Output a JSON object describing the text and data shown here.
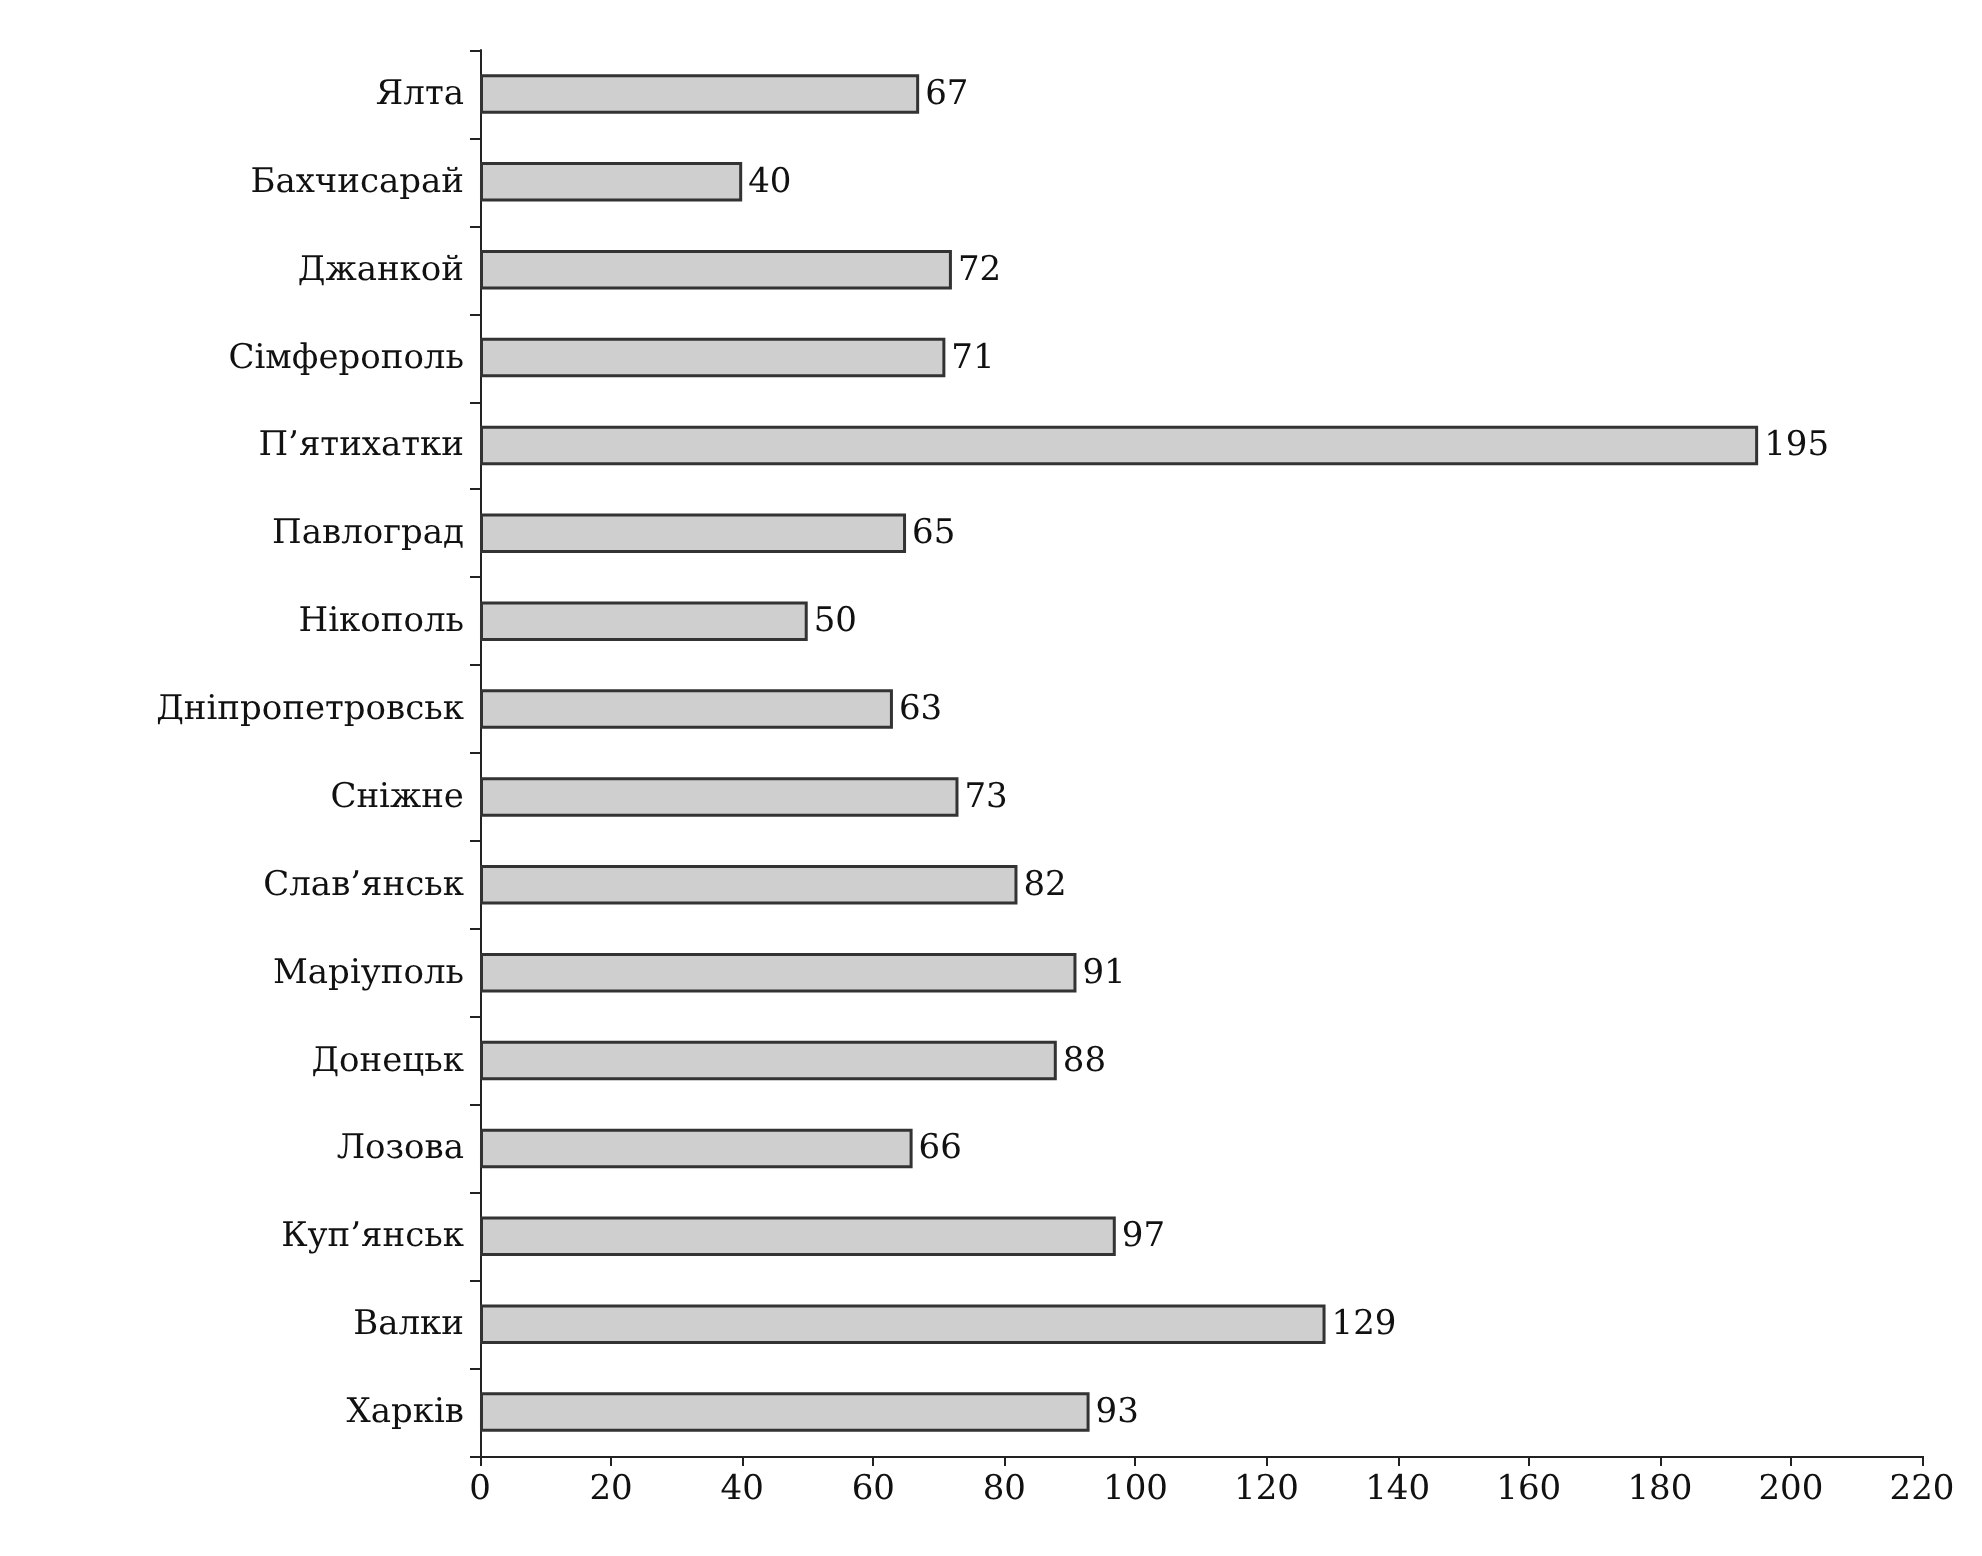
{
  "chart_data": {
    "type": "bar",
    "orientation": "horizontal",
    "categories": [
      "Ялта",
      "Бахчисарай",
      "Джанкой",
      "Сімферополь",
      "П’ятихатки",
      "Павлоград",
      "Нікополь",
      "Дніпропетровськ",
      "Сніжне",
      "Слав’янськ",
      "Маріуполь",
      "Донецьк",
      "Лозова",
      "Куп’янськ",
      "Валки",
      "Харків"
    ],
    "values": [
      67,
      40,
      72,
      71,
      195,
      65,
      50,
      63,
      73,
      82,
      91,
      88,
      66,
      97,
      129,
      93
    ],
    "color": "#cfcfcf",
    "xlim": [
      0,
      220
    ],
    "xticks": [
      0,
      20,
      40,
      60,
      80,
      100,
      120,
      140,
      160,
      180,
      200,
      220
    ],
    "data_labels": true
  }
}
